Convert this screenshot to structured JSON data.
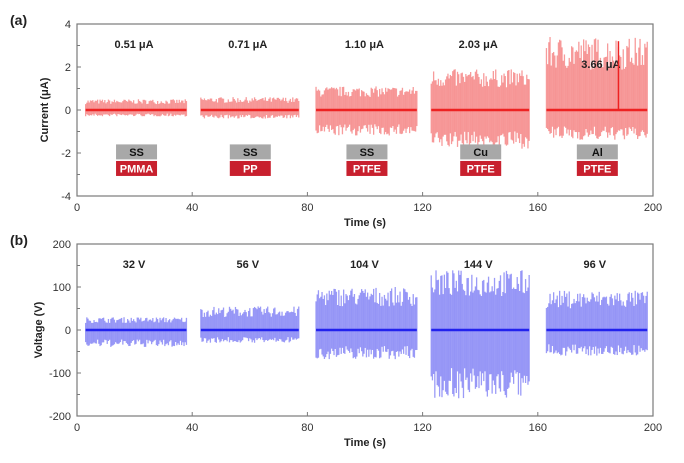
{
  "chart_data": [
    {
      "type": "line",
      "panel_label": "(a)",
      "title": "",
      "xlabel": "Time (s)",
      "ylabel": "Current (μA)",
      "xlim": [
        0,
        200
      ],
      "ylim": [
        -4,
        4
      ],
      "xticks": [
        "0",
        "40",
        "80",
        "120",
        "160",
        "200"
      ],
      "yticks": [
        "4",
        "2",
        "0",
        "-2",
        "-4"
      ],
      "xtick_values": [
        0,
        40,
        80,
        120,
        160,
        200
      ],
      "ytick_values": [
        4,
        2,
        0,
        -2,
        -4
      ],
      "grid": false,
      "color": "#ee2222",
      "series": [
        {
          "name": "SS/PMMA",
          "t_start": 3,
          "t_end": 38,
          "peak_pos": 0.5,
          "peak_neg": -0.3,
          "annotation": "0.51 μA",
          "electrode": "SS",
          "dielectric": "PMMA"
        },
        {
          "name": "SS/PP",
          "t_start": 43,
          "t_end": 77,
          "peak_pos": 0.6,
          "peak_neg": -0.4,
          "annotation": "0.71 μA",
          "electrode": "SS",
          "dielectric": "PP"
        },
        {
          "name": "SS/PTFE",
          "t_start": 83,
          "t_end": 118,
          "peak_pos": 1.1,
          "peak_neg": -1.2,
          "annotation": "1.10 μA",
          "electrode": "SS",
          "dielectric": "PTFE"
        },
        {
          "name": "Cu/PTFE",
          "t_start": 123,
          "t_end": 157,
          "peak_pos": 1.9,
          "peak_neg": -1.8,
          "annotation": "2.03 μA",
          "electrode": "Cu",
          "dielectric": "PTFE"
        },
        {
          "name": "Al/PTFE",
          "t_start": 163,
          "t_end": 198,
          "peak_pos": 3.4,
          "peak_neg": -1.4,
          "annotation": "3.66 μA",
          "electrode": "Al",
          "dielectric": "PTFE"
        }
      ]
    },
    {
      "type": "line",
      "panel_label": "(b)",
      "title": "",
      "xlabel": "Time (s)",
      "ylabel": "Voltage (V)",
      "xlim": [
        0,
        200
      ],
      "ylim": [
        -200,
        200
      ],
      "xticks": [
        "0",
        "40",
        "80",
        "120",
        "160",
        "200"
      ],
      "yticks": [
        "200",
        "100",
        "0",
        "-100",
        "-200"
      ],
      "xtick_values": [
        0,
        40,
        80,
        120,
        160,
        200
      ],
      "ytick_values": [
        200,
        100,
        0,
        -100,
        -200
      ],
      "grid": false,
      "color": "#2222ee",
      "series": [
        {
          "name": "SS/PMMA",
          "t_start": 3,
          "t_end": 38,
          "peak_pos": 30,
          "peak_neg": -40,
          "annotation": "32 V"
        },
        {
          "name": "SS/PP",
          "t_start": 43,
          "t_end": 77,
          "peak_pos": 55,
          "peak_neg": -30,
          "annotation": "56 V"
        },
        {
          "name": "SS/PTFE",
          "t_start": 83,
          "t_end": 118,
          "peak_pos": 100,
          "peak_neg": -68,
          "annotation": "104 V"
        },
        {
          "name": "Cu/PTFE",
          "t_start": 123,
          "t_end": 157,
          "peak_pos": 140,
          "peak_neg": -160,
          "annotation": "144 V"
        },
        {
          "name": "Al/PTFE",
          "t_start": 163,
          "t_end": 198,
          "peak_pos": 92,
          "peak_neg": -60,
          "annotation": "96 V"
        }
      ]
    }
  ],
  "colors": {
    "electrode_badge": "#a8a8a8",
    "dielectric_badge": "#c8202e",
    "electrode_text": "#111111",
    "dielectric_text": "#ffffff"
  }
}
